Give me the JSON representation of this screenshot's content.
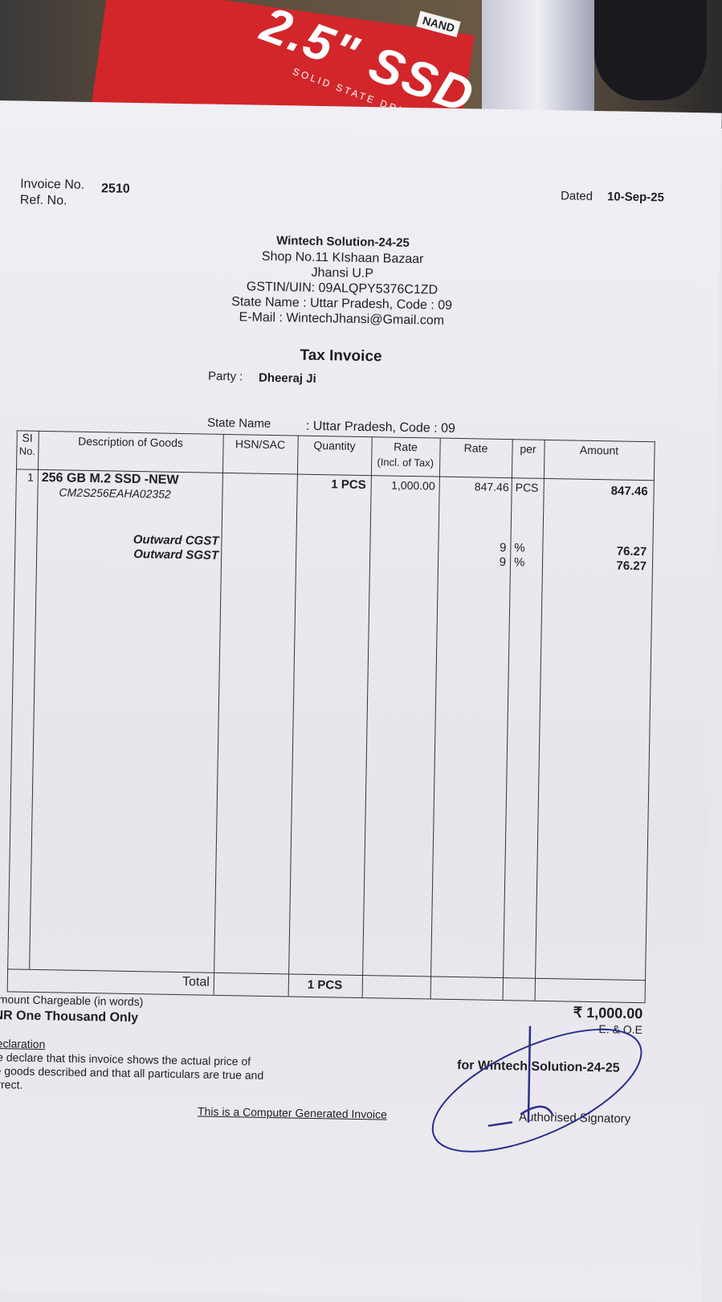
{
  "invoice": {
    "invoice_no_label": "Invoice No.",
    "invoice_no": "2510",
    "ref_label": "Ref. No.",
    "dated_label": "Dated",
    "date": "10-Sep-25"
  },
  "seller": {
    "name": "Wintech Solution-24-25",
    "address1": "Shop No.11 KIshaan Bazaar",
    "address2": "Jhansi U.P",
    "gstin": "GSTIN/UIN: 09ALQPY5376C1ZD",
    "state": "State Name :  Uttar Pradesh, Code : 09",
    "email": "E-Mail : WintechJhansi@Gmail.com"
  },
  "title": "Tax Invoice",
  "party": {
    "label": "Party  :",
    "name": "Dheeraj Ji",
    "state_label": "State Name",
    "state_value": ": Uttar Pradesh, Code : 09"
  },
  "table": {
    "headers": [
      "SI No.",
      "Description of Goods",
      "HSN/SAC",
      "Quantity",
      "Rate (Incl. of Tax)",
      "Rate",
      "per",
      "Amount"
    ],
    "header_si_1": "SI",
    "header_si_2": "No.",
    "header_rate_incl_1": "Rate",
    "header_rate_incl_2": "(Incl. of Tax)",
    "rows": [
      {
        "sl": "1",
        "description": "256 GB M.2 SSD -NEW",
        "serial": "CM2S256EAHA02352",
        "hsn": "",
        "quantity": "1 PCS",
        "rate_incl": "1,000.00",
        "rate": "847.46",
        "per": "PCS",
        "amount": "847.46"
      }
    ],
    "taxes": [
      {
        "name": "Outward CGST",
        "rate": "9",
        "per": "%",
        "amount": "76.27"
      },
      {
        "name": "Outward SGST",
        "rate": "9",
        "per": "%",
        "amount": "76.27"
      }
    ],
    "total_label": "Total",
    "total_quantity": "1 PCS",
    "total_amount": "₹ 1,000.00"
  },
  "footer": {
    "words_label": "Amount Chargeable (in words)",
    "words": "INR One Thousand Only",
    "eoe": "E. & O.E",
    "declaration_title": "Declaration",
    "declaration_1": "We declare that this invoice shows the actual price of",
    "declaration_2": "the goods described and that all particulars are true and",
    "declaration_3": "correct.",
    "for_company": "for Wintech Solution-24-25",
    "signatory": "Authorised Signatory",
    "computer_generated": "This is a Computer Generated Invoice"
  },
  "photo": {
    "box_text": "2.5\" SSD",
    "box_sub": "SOLID STATE DRIVE",
    "box_badge": "NAND"
  },
  "colors": {
    "paper": "#eceaf0",
    "ink": "#1e1e24",
    "stamp": "#2a2f8a",
    "box": "#d2262b"
  }
}
